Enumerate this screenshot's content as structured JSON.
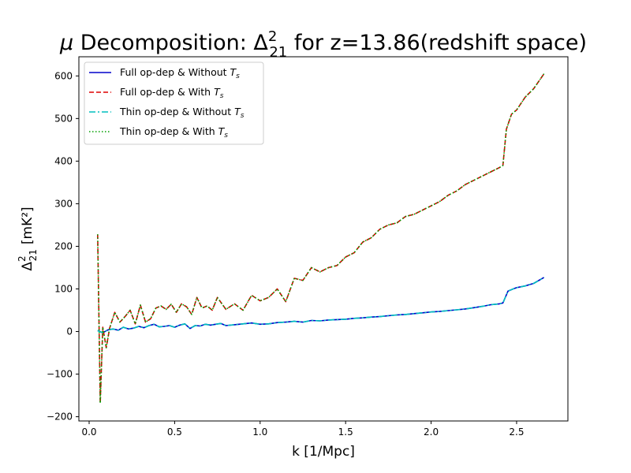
{
  "chart_data": {
    "type": "line",
    "title": {
      "prefix": "μ",
      "main": " Decomposition: Δ",
      "sub": "21",
      "sup": "2",
      "suffix": " for z=13.86(redshift space)"
    },
    "xlabel": "k [1/Mpc]",
    "ylabel": {
      "main": "Δ",
      "sub": "21",
      "sup": "2",
      "unit": "[mK²]"
    },
    "xlim": [
      -0.06,
      2.8
    ],
    "ylim": [
      -210,
      645
    ],
    "xticks": [
      0.0,
      0.5,
      1.0,
      1.5,
      2.0,
      2.5
    ],
    "xtick_labels": [
      "0.0",
      "0.5",
      "1.0",
      "1.5",
      "2.0",
      "2.5"
    ],
    "yticks": [
      -200,
      -100,
      0,
      100,
      200,
      300,
      400,
      500,
      600
    ],
    "ytick_labels": [
      "−200",
      "−100",
      "0",
      "100",
      "200",
      "300",
      "400",
      "500",
      "600"
    ],
    "grid": false,
    "legend_position": "top-left",
    "series": [
      {
        "name": "Full op-dep & Without ",
        "name_var": "T",
        "name_sub": "s",
        "color": "#0000cc",
        "dash": "solid",
        "x": [
          0.05,
          0.08,
          0.11,
          0.14,
          0.17,
          0.2,
          0.23,
          0.26,
          0.29,
          0.32,
          0.35,
          0.38,
          0.41,
          0.44,
          0.47,
          0.5,
          0.53,
          0.56,
          0.59,
          0.62,
          0.65,
          0.68,
          0.71,
          0.74,
          0.77,
          0.8,
          0.85,
          0.9,
          0.95,
          1.0,
          1.05,
          1.1,
          1.15,
          1.2,
          1.25,
          1.3,
          1.35,
          1.4,
          1.45,
          1.5,
          1.55,
          1.6,
          1.65,
          1.7,
          1.75,
          1.8,
          1.85,
          1.9,
          1.95,
          2.0,
          2.05,
          2.1,
          2.15,
          2.2,
          2.25,
          2.3,
          2.35,
          2.4,
          2.42,
          2.45,
          2.48,
          2.5,
          2.55,
          2.6,
          2.66
        ],
        "y": [
          2,
          -3,
          4,
          6,
          3,
          10,
          6,
          8,
          12,
          9,
          14,
          17,
          11,
          12,
          14,
          10,
          15,
          18,
          7,
          14,
          13,
          17,
          15,
          17,
          19,
          14,
          16,
          18,
          20,
          17,
          18,
          21,
          22,
          24,
          22,
          26,
          25,
          27,
          28,
          29,
          31,
          32,
          34,
          35,
          37,
          39,
          40,
          42,
          44,
          46,
          47,
          49,
          51,
          53,
          56,
          59,
          63,
          65,
          67,
          95,
          100,
          103,
          107,
          113,
          127
        ]
      },
      {
        "name": "Full op-dep & With ",
        "name_var": "T",
        "name_sub": "s",
        "color": "#dd0000",
        "dash": "dashed",
        "x": [
          0.05,
          0.065,
          0.08,
          0.1,
          0.12,
          0.15,
          0.18,
          0.21,
          0.24,
          0.27,
          0.3,
          0.33,
          0.36,
          0.39,
          0.42,
          0.45,
          0.48,
          0.51,
          0.54,
          0.57,
          0.6,
          0.63,
          0.66,
          0.69,
          0.72,
          0.75,
          0.8,
          0.85,
          0.9,
          0.95,
          1.0,
          1.05,
          1.1,
          1.15,
          1.2,
          1.25,
          1.3,
          1.35,
          1.4,
          1.45,
          1.5,
          1.55,
          1.6,
          1.65,
          1.7,
          1.75,
          1.8,
          1.85,
          1.9,
          1.95,
          2.0,
          2.05,
          2.1,
          2.15,
          2.2,
          2.25,
          2.3,
          2.35,
          2.4,
          2.42,
          2.44,
          2.47,
          2.5,
          2.55,
          2.6,
          2.66
        ],
        "y": [
          228,
          -168,
          10,
          -38,
          8,
          45,
          22,
          35,
          50,
          18,
          62,
          22,
          30,
          55,
          60,
          52,
          64,
          45,
          65,
          58,
          40,
          80,
          55,
          60,
          50,
          80,
          52,
          65,
          50,
          85,
          72,
          80,
          100,
          70,
          125,
          120,
          150,
          140,
          150,
          155,
          175,
          185,
          210,
          220,
          240,
          250,
          255,
          270,
          275,
          285,
          295,
          305,
          320,
          330,
          345,
          355,
          365,
          375,
          385,
          390,
          475,
          510,
          520,
          550,
          570,
          605
        ]
      },
      {
        "name": "Thin op-dep & Without ",
        "name_var": "T",
        "name_sub": "s",
        "color": "#00bfbf",
        "dash": "dashdot",
        "x": [
          0.05,
          0.08,
          0.11,
          0.14,
          0.17,
          0.2,
          0.23,
          0.26,
          0.29,
          0.32,
          0.35,
          0.38,
          0.41,
          0.44,
          0.47,
          0.5,
          0.53,
          0.56,
          0.59,
          0.62,
          0.65,
          0.68,
          0.71,
          0.74,
          0.77,
          0.8,
          0.85,
          0.9,
          0.95,
          1.0,
          1.05,
          1.1,
          1.15,
          1.2,
          1.25,
          1.3,
          1.35,
          1.4,
          1.45,
          1.5,
          1.55,
          1.6,
          1.65,
          1.7,
          1.75,
          1.8,
          1.85,
          1.9,
          1.95,
          2.0,
          2.05,
          2.1,
          2.15,
          2.2,
          2.25,
          2.3,
          2.35,
          2.4,
          2.42,
          2.45,
          2.48,
          2.5,
          2.55,
          2.6,
          2.66
        ],
        "y": [
          2,
          -3,
          4,
          6,
          3,
          10,
          6,
          8,
          12,
          9,
          14,
          17,
          11,
          12,
          14,
          10,
          15,
          18,
          7,
          14,
          13,
          17,
          15,
          17,
          19,
          14,
          16,
          18,
          20,
          17,
          18,
          21,
          22,
          24,
          22,
          26,
          25,
          27,
          28,
          29,
          31,
          32,
          34,
          35,
          37,
          39,
          40,
          42,
          44,
          46,
          47,
          49,
          51,
          53,
          56,
          59,
          63,
          65,
          67,
          95,
          100,
          103,
          107,
          113,
          127
        ]
      },
      {
        "name": "Thin op-dep & With ",
        "name_var": "T",
        "name_sub": "s",
        "color": "#00a000",
        "dash": "dotted",
        "x": [
          0.05,
          0.065,
          0.08,
          0.1,
          0.12,
          0.15,
          0.18,
          0.21,
          0.24,
          0.27,
          0.3,
          0.33,
          0.36,
          0.39,
          0.42,
          0.45,
          0.48,
          0.51,
          0.54,
          0.57,
          0.6,
          0.63,
          0.66,
          0.69,
          0.72,
          0.75,
          0.8,
          0.85,
          0.9,
          0.95,
          1.0,
          1.05,
          1.1,
          1.15,
          1.2,
          1.25,
          1.3,
          1.35,
          1.4,
          1.45,
          1.5,
          1.55,
          1.6,
          1.65,
          1.7,
          1.75,
          1.8,
          1.85,
          1.9,
          1.95,
          2.0,
          2.05,
          2.1,
          2.15,
          2.2,
          2.25,
          2.3,
          2.35,
          2.4,
          2.42,
          2.44,
          2.47,
          2.5,
          2.55,
          2.6,
          2.66
        ],
        "y": [
          228,
          -168,
          10,
          -38,
          8,
          45,
          22,
          35,
          50,
          18,
          62,
          22,
          30,
          55,
          60,
          52,
          64,
          45,
          65,
          58,
          40,
          80,
          55,
          60,
          50,
          80,
          52,
          65,
          50,
          85,
          72,
          80,
          100,
          70,
          125,
          120,
          150,
          140,
          150,
          155,
          175,
          185,
          210,
          220,
          240,
          250,
          255,
          270,
          275,
          285,
          295,
          305,
          320,
          330,
          345,
          355,
          365,
          375,
          385,
          390,
          475,
          510,
          520,
          550,
          570,
          605
        ]
      }
    ]
  }
}
